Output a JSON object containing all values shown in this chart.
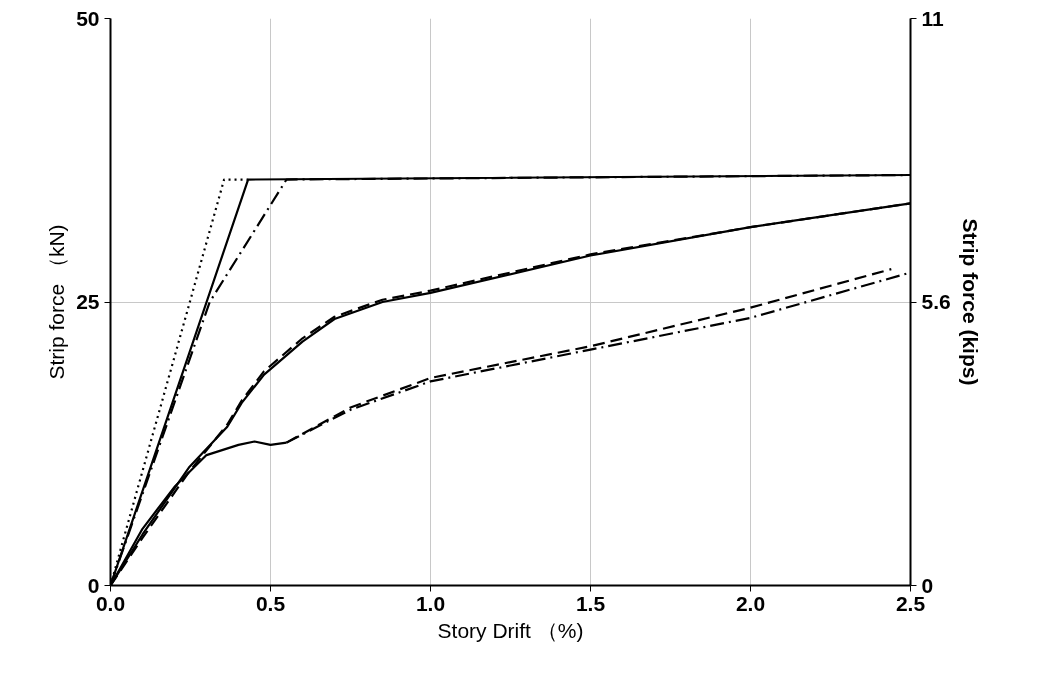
{
  "chart_data": {
    "type": "line",
    "xlabel": "Story Drift （%)",
    "ylabel": "Strip force （kN)",
    "y2label": "Strip force (kips)",
    "xlim": [
      0,
      2.5
    ],
    "xticks": [
      {
        "value": 0,
        "label": "0.0"
      },
      0.5,
      {
        "value": 1,
        "label": "1.0"
      },
      1.5,
      {
        "value": 2,
        "label": "2.0"
      },
      2.5
    ],
    "ylim": [
      0,
      50
    ],
    "yticks": [
      0,
      25,
      50
    ],
    "y2lim": [
      0,
      11.2
    ],
    "y2ticks": [
      0,
      5.6,
      {
        "value": 11.2,
        "label": "11"
      }
    ],
    "grid": true,
    "series": [
      {
        "color": "#000000",
        "line_style": "dotted",
        "x": [
          0,
          0.355,
          0.43
        ],
        "values": [
          0,
          35.8,
          35.8
        ]
      },
      {
        "color": "#000000",
        "line_style": "solid",
        "x": [
          0,
          0.43,
          2.5
        ],
        "values": [
          0,
          35.8,
          36.2
        ]
      },
      {
        "color": "#000000",
        "line_style": "dashdot",
        "x": [
          0,
          0.31,
          0.55,
          2.5
        ],
        "values": [
          0,
          25,
          35.8,
          36.2
        ]
      },
      {
        "color": "#000000",
        "line_style": "solid",
        "x": [
          0,
          0.1,
          0.245,
          0.365,
          0.41,
          0.48,
          0.6,
          0.7,
          0.85,
          1.0,
          1.5,
          2.0,
          2.5
        ],
        "values": [
          0,
          4.5,
          10.4,
          14.0,
          16.1,
          18.6,
          21.5,
          23.5,
          25.0,
          25.8,
          29.1,
          31.6,
          33.7
        ]
      },
      {
        "color": "#000000",
        "line_style": "dashed",
        "x": [
          0,
          0.1,
          0.245,
          0.365,
          0.41,
          0.48,
          0.6,
          0.7,
          0.85,
          1.0,
          1.5,
          2.0,
          2.5
        ],
        "values": [
          0,
          4.2,
          10.0,
          14.2,
          16.3,
          18.9,
          21.8,
          23.7,
          25.2,
          26.0,
          29.2,
          31.6,
          33.7
        ]
      },
      {
        "color": "#000000",
        "line_style": "solid",
        "x": [
          0,
          0.1,
          0.2,
          0.3,
          0.4,
          0.45,
          0.5,
          0.55
        ],
        "values": [
          0,
          5.0,
          8.7,
          11.5,
          12.4,
          12.7,
          12.4,
          12.6
        ]
      },
      {
        "color": "#000000",
        "line_style": "dashdot",
        "x": [
          0.55,
          0.75,
          1.0,
          1.5,
          2.0,
          2.5
        ],
        "values": [
          12.6,
          15.5,
          18.0,
          20.8,
          23.6,
          27.6
        ]
      },
      {
        "color": "#000000",
        "line_style": "dashed",
        "x": [
          0.55,
          0.75,
          1.0,
          1.5,
          2.0,
          2.44
        ],
        "values": [
          12.6,
          15.7,
          18.3,
          21.1,
          24.5,
          27.9
        ]
      }
    ]
  }
}
